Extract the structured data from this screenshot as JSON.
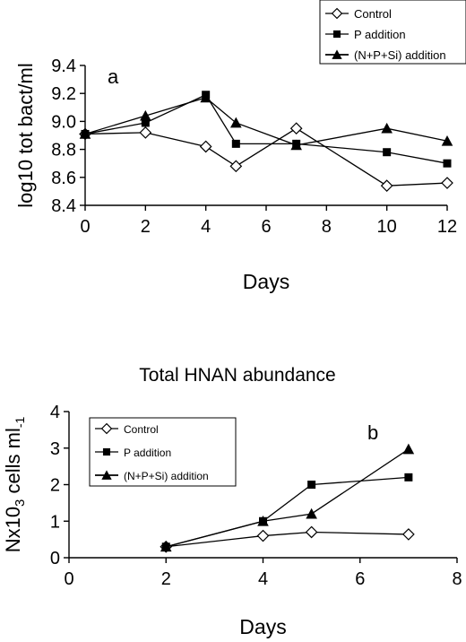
{
  "chart_data": [
    {
      "panel_label": "a",
      "type": "line",
      "xlabel": "Days",
      "ylabel": "log10 tot bact/ml",
      "xlim": [
        0,
        12
      ],
      "ylim": [
        8.4,
        9.4
      ],
      "x_ticks": [
        "0",
        "2",
        "4",
        "6",
        "8",
        "10",
        "12"
      ],
      "y_ticks": [
        "8.4",
        "8.6",
        "8.8",
        "9.0",
        "9.2",
        "9.4"
      ],
      "grid": false,
      "legend_position": "top-right-outside",
      "series": [
        {
          "name": "Control",
          "marker": "open-diamond",
          "x": [
            0,
            2,
            4,
            5,
            7,
            10,
            12
          ],
          "y": [
            8.91,
            8.92,
            8.82,
            8.68,
            8.95,
            8.54,
            8.56
          ]
        },
        {
          "name": "P addition",
          "marker": "filled-square",
          "x": [
            0,
            2,
            4,
            5,
            7,
            10,
            12
          ],
          "y": [
            8.91,
            8.99,
            9.19,
            8.84,
            8.84,
            8.78,
            8.7
          ]
        },
        {
          "name": "(N+P+Si) addition",
          "marker": "filled-triangle",
          "x": [
            0,
            2,
            4,
            5,
            7,
            10,
            12
          ],
          "y": [
            8.91,
            9.04,
            9.17,
            8.99,
            8.83,
            8.95,
            8.86
          ]
        }
      ]
    },
    {
      "panel_label": "b",
      "type": "line",
      "title": "Total HNAN abundance",
      "xlabel": "Days",
      "ylabel": "Nx10",
      "ylabel_sub": "3",
      "ylabel_rest": " cells ml",
      "ylabel_sup": "-1",
      "xlim": [
        0,
        8
      ],
      "ylim": [
        0,
        4
      ],
      "x_ticks": [
        "0",
        "2",
        "4",
        "6",
        "8"
      ],
      "y_ticks": [
        "0",
        "1",
        "2",
        "3",
        "4"
      ],
      "grid": false,
      "legend_position": "top-left-inside",
      "series": [
        {
          "name": "Control",
          "marker": "open-diamond",
          "x": [
            2,
            4,
            5,
            7
          ],
          "y": [
            0.3,
            0.6,
            0.7,
            0.64
          ]
        },
        {
          "name": "P addition",
          "marker": "filled-square",
          "x": [
            2,
            4,
            5,
            7
          ],
          "y": [
            0.3,
            1.0,
            2.0,
            2.2
          ]
        },
        {
          "name": "(N+P+Si) addition",
          "marker": "filled-triangle",
          "x": [
            2,
            4,
            5,
            7
          ],
          "y": [
            0.3,
            1.0,
            1.2,
            2.97
          ]
        }
      ]
    }
  ]
}
